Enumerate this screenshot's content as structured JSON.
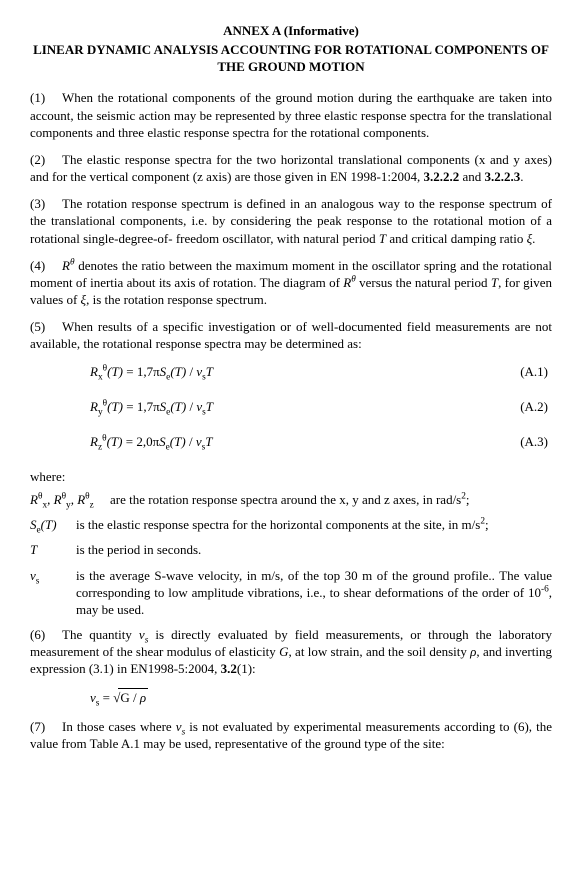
{
  "header": {
    "label": "ANNEX A (Informative)",
    "title": "LINEAR DYNAMIC ANALYSIS ACCOUNTING FOR ROTATIONAL COMPONENTS OF THE GROUND MOTION"
  },
  "paragraphs": {
    "p1_num": "(1)",
    "p1_text": "When the rotational components of the ground motion during the earthquake are taken into account, the seismic action may be represented by three elastic response spectra for the translational components and three elastic response spectra for the rotational components.",
    "p2_num": "(2)",
    "p2_text_a": "The elastic response spectra for the two horizontal translational components (x and y axes) and for the vertical component (z axis) are those given in EN 1998-1:2004, ",
    "p2_bold_a": "3.2.2.2",
    "p2_text_b": " and ",
    "p2_bold_b": "3.2.2.3",
    "p2_text_c": ".",
    "p3_num": "(3)",
    "p3_text_a": "The rotation response spectrum is defined in an analogous way to the response spectrum of the translational components, i.e. by considering the peak response to the rotational motion of a rotational single-degree-of- freedom oscillator, with natural period ",
    "p3_T": "T",
    "p3_text_b": " and critical damping ratio ",
    "p3_xi": "ξ",
    "p3_text_c": ".",
    "p4_num": "(4)",
    "p4_R": "R",
    "p4_sup": "θ",
    "p4_text_a": " denotes the ratio between the maximum moment in the oscillator spring and the rotational moment of inertia about its axis of rotation. The diagram of ",
    "p4_text_b": " versus the natural period ",
    "p4_T": "T",
    "p4_text_c": ", for given values of ",
    "p4_xi": "ξ",
    "p4_text_d": ", is the rotation response spectrum.",
    "p5_num": "(5)",
    "p5_text": "When results of a specific investigation or of well-documented field measurements are not available, the rotational response spectra may be determined as:",
    "p6_num": "(6)",
    "p6_text_a": "The quantity ",
    "p6_vs": "v",
    "p6_vs_sub": "s",
    "p6_text_b": " is directly evaluated by field measurements, or through the laboratory measurement of the shear modulus of elasticity ",
    "p6_G": "G",
    "p6_text_c": ", at low strain, and the soil density ",
    "p6_rho": "ρ",
    "p6_text_d": ", and inverting expression (3.1) in EN1998-5:2004, ",
    "p6_bold": "3.2",
    "p6_text_e": "(1):",
    "p7_num": "(7)",
    "p7_text_a": "In those cases where ",
    "p7_vs": "v",
    "p7_vs_sub": "s",
    "p7_text_b": " is not evaluated by experimental measurements according to (6), the value from Table A.1 may be used, representative of the ground type of the site:"
  },
  "equations": {
    "eqA1_left_html": "R<sub class=\"rm\">x</sub><sup class=\"rm\">θ</sup>(T) <span class=\"rm\">= 1,7π</span>S<sub class=\"rm\">e</sub>(T) <span class=\"rm\">/</span> v<sub class=\"rm\">s</sub>T",
    "eqA1_num": "(A.1)",
    "eqA2_left_html": "R<sub class=\"rm\">y</sub><sup class=\"rm\">θ</sup>(T) <span class=\"rm\">= 1,7π</span>S<sub class=\"rm\">e</sub>(T) <span class=\"rm\">/</span> v<sub class=\"rm\">s</sub>T",
    "eqA2_num": "(A.2)",
    "eqA3_left_html": "R<sub class=\"rm\">z</sub><sup class=\"rm\">θ</sup>(T) <span class=\"rm\">= 2,0π</span>S<sub class=\"rm\">e</sub>(T) <span class=\"rm\">/</span> v<sub class=\"rm\">s</sub>T",
    "eqA3_num": "(A.3)",
    "vs_eq_html": "v<sub class=\"rm\">s</sub> <span class=\"rm\">= </span><span class=\"sqrt-wrap\"><span class=\"rm\">√</span><span class=\"sqrt-bar\"><span class=\"rm\">G / </span>ρ</span></span>"
  },
  "where": {
    "hdr": "where:",
    "d1_sym_html": "R<span class=\"rm\"><sup>θ</sup><sub>x</sub></span>, R<span class=\"rm\"><sup>θ</sup><sub>y</sub></span>, R<span class=\"rm\"><sup>θ</sup><sub>z</sub></span>",
    "d1_txt_html": "are the rotation response spectra around the x, y and z axes, in rad/s<sup>2</sup>;",
    "d2_sym_html": "S<span class=\"rm\"><sub>e</sub></span>(T)",
    "d2_txt_html": "is the elastic response spectra for the horizontal components at the site, in m/s<sup>2</sup>;",
    "d3_sym_html": "T",
    "d3_txt": "is the period in seconds.",
    "d4_sym_html": "v<span class=\"rm\"><sub>s</sub></span>",
    "d4_txt_html": "is the average S-wave velocity, in m/s, of the top 30 m of the ground profile.. The value corresponding to low amplitude vibrations, i.e., to shear deformations of the order of 10<sup>-6</sup>, may be used."
  }
}
